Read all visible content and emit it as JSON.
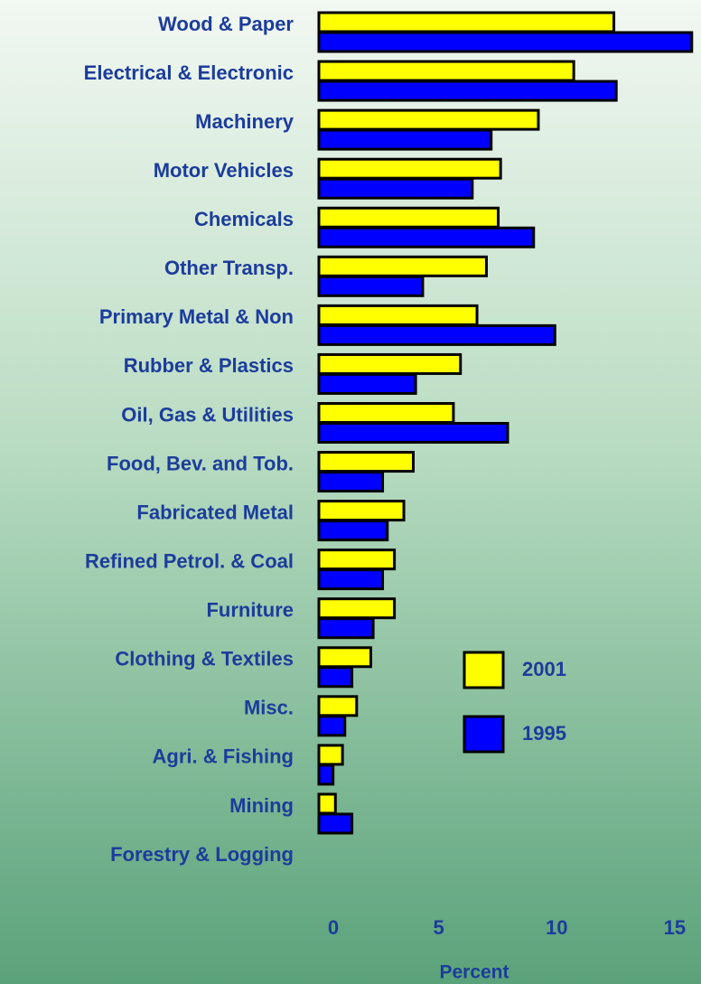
{
  "chart_data": {
    "type": "hbar",
    "xlabel": "Percent",
    "categories": [
      "Wood & Paper",
      "Electrical &  Electronic",
      "Machinery",
      "Motor Vehicles",
      "Chemicals",
      "Other Transp.",
      "Primary Metal & Non",
      "Rubber & Plastics",
      "Oil, Gas & Utilities",
      "Food, Bev. and Tob.",
      "Fabricated Metal",
      "Refined Petrol. & Coal",
      "Furniture",
      "Clothing & Textiles",
      "Misc.",
      "Agri. & Fishing",
      "Mining",
      "Forestry & Logging"
    ],
    "series": [
      {
        "name": "2001",
        "color": "#ffff00",
        "values": [
          12.5,
          10.8,
          9.3,
          7.7,
          7.6,
          7.1,
          6.7,
          6.0,
          5.7,
          4.0,
          3.6,
          3.2,
          3.2,
          2.2,
          1.6,
          1.0,
          0.7,
          0
        ]
      },
      {
        "name": "1995",
        "color": "#0000ff",
        "values": [
          15.8,
          12.6,
          7.3,
          6.5,
          9.1,
          4.4,
          10.0,
          4.1,
          8.0,
          2.7,
          2.9,
          2.7,
          2.3,
          1.4,
          1.1,
          0.6,
          1.4,
          0
        ]
      }
    ],
    "xlim": [
      0,
      16
    ],
    "xticks": [
      0,
      5,
      10,
      15
    ],
    "grid": false
  }
}
